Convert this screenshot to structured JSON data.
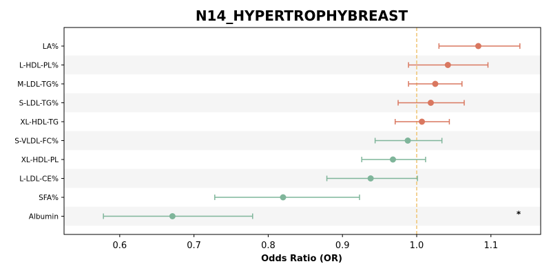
{
  "chart_data": {
    "type": "forest",
    "title": "N14_HYPERTROPHYBREAST",
    "xlabel": "Odds Ratio (OR)",
    "xlim": [
      0.525,
      1.167
    ],
    "xticks": [
      0.6,
      0.7,
      0.8,
      0.9,
      1.0,
      1.1
    ],
    "xtick_labels": [
      "0.6",
      "0.7",
      "0.8",
      "0.9",
      "1.0",
      "1.1"
    ],
    "reference_line": 1.0,
    "colors": {
      "risk": "#d9775f",
      "protective": "#7fb59a",
      "reference": "#f0c77a",
      "band": "#f5f5f5"
    },
    "rows": [
      {
        "label": "LA%",
        "or": 1.083,
        "lower": 1.03,
        "upper": 1.139,
        "group": "risk",
        "sig": ""
      },
      {
        "label": "L-HDL-PL%",
        "or": 1.042,
        "lower": 0.989,
        "upper": 1.096,
        "group": "risk",
        "sig": ""
      },
      {
        "label": "M-LDL-TG%",
        "or": 1.025,
        "lower": 0.989,
        "upper": 1.061,
        "group": "risk",
        "sig": ""
      },
      {
        "label": "S-LDL-TG%",
        "or": 1.019,
        "lower": 0.975,
        "upper": 1.064,
        "group": "risk",
        "sig": ""
      },
      {
        "label": "XL-HDL-TG",
        "or": 1.007,
        "lower": 0.971,
        "upper": 1.044,
        "group": "risk",
        "sig": ""
      },
      {
        "label": "S-VLDL-FC%",
        "or": 0.988,
        "lower": 0.944,
        "upper": 1.034,
        "group": "protective",
        "sig": ""
      },
      {
        "label": "XL-HDL-PL",
        "or": 0.968,
        "lower": 0.926,
        "upper": 1.012,
        "group": "protective",
        "sig": ""
      },
      {
        "label": "L-LDL-CE%",
        "or": 0.938,
        "lower": 0.879,
        "upper": 1.001,
        "group": "protective",
        "sig": ""
      },
      {
        "label": "SFA%",
        "or": 0.82,
        "lower": 0.728,
        "upper": 0.923,
        "group": "protective",
        "sig": ""
      },
      {
        "label": "Albumin",
        "or": 0.671,
        "lower": 0.578,
        "upper": 0.779,
        "group": "protective",
        "sig": "*"
      }
    ]
  }
}
